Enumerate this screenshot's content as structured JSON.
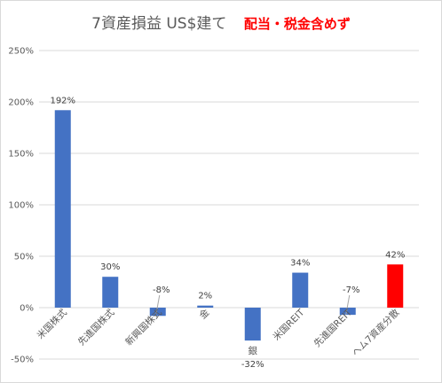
{
  "chart_data": {
    "type": "bar",
    "title": "7資産損益 US$建て",
    "subtitle": "配当・税金含めず",
    "categories": [
      "米国株式",
      "先進国株式",
      "新興国株式",
      "金",
      "銀",
      "米国REIT",
      "先進国REIT",
      "ヘム7資産分散"
    ],
    "category_labels_shown": [
      "米国株式",
      "先進国株式",
      "新興国株式",
      "金",
      "",
      "米国REIT",
      "先進国REIT",
      "ヘム7資産分散"
    ],
    "values": [
      192,
      30,
      -8,
      2,
      -32,
      34,
      -7,
      42
    ],
    "value_labels": [
      "192%",
      "30%",
      "-8%",
      "2%",
      "-32%",
      "34%",
      "-7%",
      "42%"
    ],
    "extra_texts": [
      "銀"
    ],
    "ylim": [
      -50,
      250
    ],
    "yticks": [
      "-50%",
      "0%",
      "50%",
      "100%",
      "150%",
      "200%",
      "250%"
    ],
    "xlabel": "",
    "ylabel": "",
    "grid": true,
    "legend": "none",
    "colors": {
      "bar": "#4472c4",
      "highlight_bar": "#ff0000",
      "highlight_index": 7,
      "grid": "#d9d9d9",
      "subtitle": "#ff0000"
    }
  }
}
